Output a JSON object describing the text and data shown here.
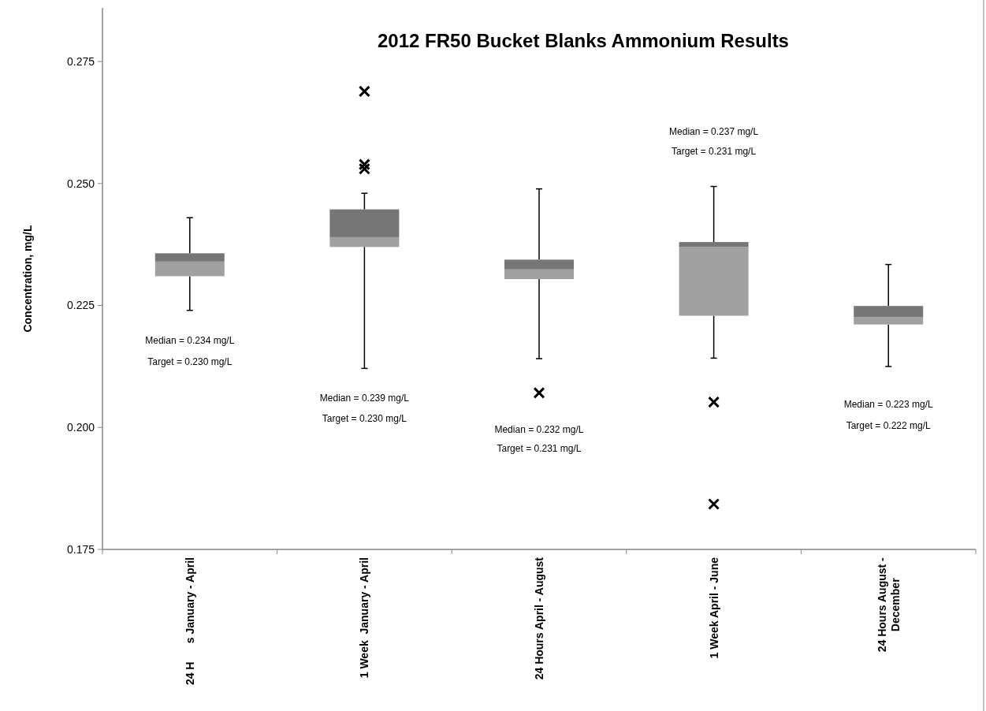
{
  "chart_data": {
    "type": "box",
    "title": "2012 FR50 Bucket Blanks Ammonium Results",
    "ylabel": "Concentration, mg/L",
    "categories": [
      "24 H      s January - April",
      "1 Week  January - April",
      "24 Hours April - August",
      "1 Week April - June",
      "24 Hours August - December"
    ],
    "series": [
      {
        "color": "#a0a0a0",
        "boxes": [
          {
            "low": 0.224,
            "q1": 0.231,
            "median": 0.234,
            "q3": 0.2357,
            "high": 0.243
          },
          {
            "low": 0.2121,
            "q1": 0.237,
            "median": 0.239,
            "q3": 0.2447,
            "high": 0.248,
            "outliers": [
              0.2689,
              0.2539,
              0.253
            ]
          },
          {
            "low": 0.2141,
            "q1": 0.2304,
            "median": 0.2324,
            "q3": 0.2344,
            "high": 0.2489,
            "outliers": [
              0.2071
            ]
          },
          {
            "low": 0.2142,
            "q1": 0.2229,
            "median": 0.237,
            "q3": 0.238,
            "high": 0.2494,
            "outliers": [
              0.2052,
              0.1843
            ]
          },
          {
            "low": 0.2125,
            "q1": 0.2211,
            "median": 0.2226,
            "q3": 0.2249,
            "high": 0.2334
          }
        ]
      }
    ],
    "marker": "cross",
    "ylim": [
      0.175,
      0.286
    ],
    "yticks": [
      {
        "value": 0.175,
        "label": "0.175"
      },
      {
        "value": 0.2,
        "label": "0.200"
      },
      {
        "value": 0.225,
        "label": "0.225"
      },
      {
        "value": 0.25,
        "label": "0.250"
      },
      {
        "value": 0.275,
        "label": "0.275"
      }
    ],
    "grid": false,
    "annotations": [
      "Median = 0.234 mg/L",
      "Target = 0.230 mg/L",
      "Median = 0.239 mg/L",
      "Target = 0.230 mg/L",
      "Median = 0.232 mg/L",
      "Target = 0.231 mg/L",
      "Median = 0.237 mg/L",
      "Target = 0.231 mg/L",
      "Median = 0.223 mg/L",
      "Target = 0.222 mg/L"
    ]
  }
}
